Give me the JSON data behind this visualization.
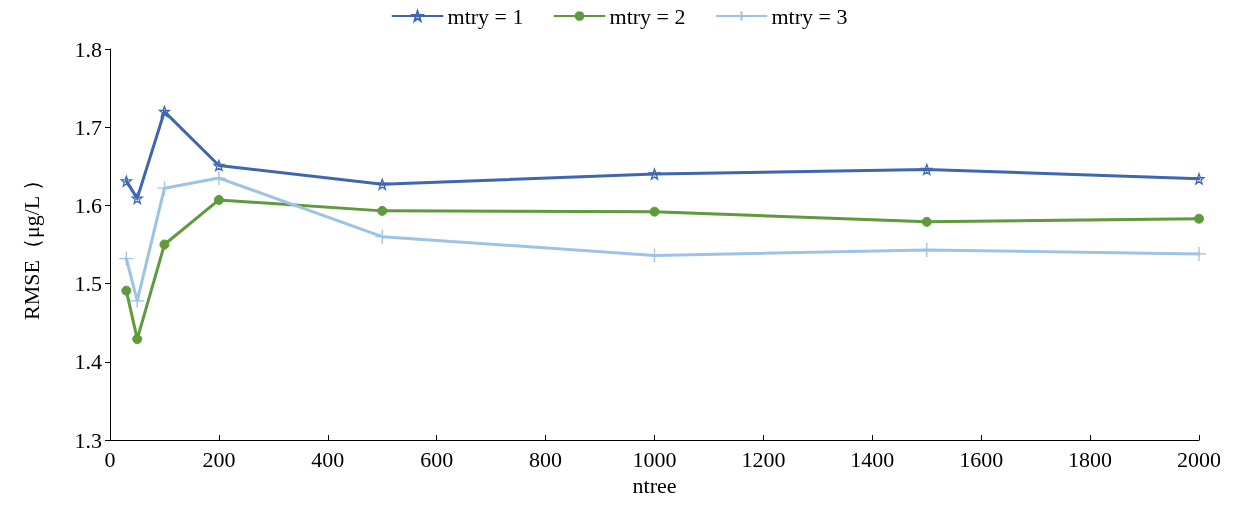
{
  "chart_data": {
    "type": "line",
    "xlabel": "ntree",
    "ylabel": "RMSE（μg/L ）",
    "x": [
      30,
      50,
      100,
      200,
      500,
      1000,
      1500,
      2000
    ],
    "series": [
      {
        "name": "mtry = 1",
        "color": "#3f67b1",
        "marker": "star",
        "values": [
          1.631,
          1.609,
          1.72,
          1.651,
          1.627,
          1.64,
          1.646,
          1.634
        ]
      },
      {
        "name": "mtry = 2",
        "color": "#5f9a3c",
        "marker": "circle",
        "values": [
          1.491,
          1.429,
          1.55,
          1.607,
          1.593,
          1.592,
          1.579,
          1.583
        ]
      },
      {
        "name": "mtry = 3",
        "color": "#9dc3e6",
        "marker": "cross",
        "values": [
          1.532,
          1.478,
          1.622,
          1.635,
          1.56,
          1.536,
          1.543,
          1.538
        ]
      }
    ],
    "xlim": [
      0,
      2000
    ],
    "xticks": [
      0,
      200,
      400,
      600,
      800,
      1000,
      1200,
      1400,
      1600,
      1800,
      2000
    ],
    "ylim": [
      1.3,
      1.8
    ],
    "yticks": [
      1.3,
      1.4,
      1.5,
      1.6,
      1.7,
      1.8
    ],
    "grid": false,
    "legend": "top",
    "line_style": "solid"
  }
}
